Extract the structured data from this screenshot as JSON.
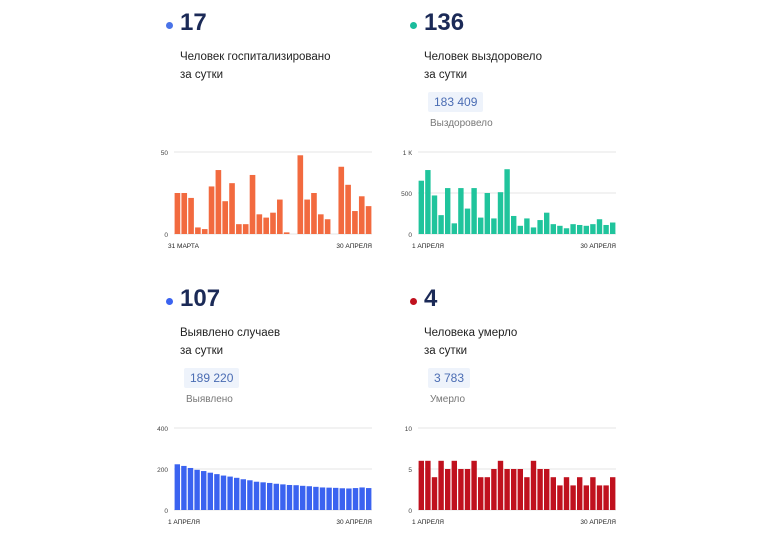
{
  "panels": [
    {
      "number": "17",
      "desc": "Человек госпитализировано\nза сутки",
      "total": null,
      "total_label": null,
      "dot_color": "#4a73e8"
    },
    {
      "number": "136",
      "desc": "Человек выздоровело\nза сутки",
      "total": "183 409",
      "total_label": "Выздоровело",
      "dot_color": "#1abc9c"
    },
    {
      "number": "107",
      "desc": "Выявлено случаев\nза сутки",
      "total": "189 220",
      "total_label": "Выявлено",
      "dot_color": "#3b63f0"
    },
    {
      "number": "4",
      "desc": "Человека умерло\nза сутки",
      "total": "3 783",
      "total_label": "Умерло",
      "dot_color": "#c0111e"
    }
  ],
  "chart_data": [
    {
      "type": "bar",
      "color": "#f26a3f",
      "ylim": [
        0,
        50
      ],
      "yticks": [
        "50",
        "0"
      ],
      "x_start_label": "31 МАРТА",
      "x_end_label": "30 АПРЕЛЯ",
      "values": [
        25,
        25,
        22,
        4,
        3,
        29,
        39,
        20,
        31,
        6,
        6,
        36,
        12,
        10,
        13,
        21,
        1,
        0,
        48,
        21,
        25,
        12,
        9,
        0,
        41,
        30,
        14,
        23,
        17
      ]
    },
    {
      "type": "bar",
      "color": "#20c49c",
      "ylim": [
        0,
        1000
      ],
      "yticks": [
        "1 К",
        "500",
        "0"
      ],
      "x_start_label": "1 АПРЕЛЯ",
      "x_end_label": "30 АПРЕЛЯ",
      "values": [
        650,
        780,
        470,
        230,
        560,
        130,
        560,
        310,
        560,
        200,
        500,
        190,
        510,
        790,
        220,
        100,
        190,
        80,
        170,
        260,
        120,
        100,
        70,
        120,
        110,
        100,
        120,
        180,
        110,
        140
      ]
    },
    {
      "type": "bar",
      "color": "#3b63f0",
      "ylim": [
        0,
        400
      ],
      "yticks": [
        "400",
        "200",
        "0"
      ],
      "x_start_label": "1 АПРЕЛЯ",
      "x_end_label": "30 АПРЕЛЯ",
      "values": [
        223,
        215,
        205,
        196,
        190,
        182,
        175,
        168,
        163,
        157,
        150,
        145,
        138,
        135,
        132,
        128,
        125,
        122,
        121,
        118,
        116,
        113,
        110,
        109,
        108,
        106,
        105,
        107,
        110,
        107
      ]
    },
    {
      "type": "bar",
      "color": "#c0111e",
      "ylim": [
        0,
        10
      ],
      "yticks": [
        "10",
        "5",
        "0"
      ],
      "x_start_label": "1 АПРЕЛЯ",
      "x_end_label": "30 АПРЕЛЯ",
      "values": [
        6,
        6,
        4,
        6,
        5,
        6,
        5,
        5,
        6,
        4,
        4,
        5,
        6,
        5,
        5,
        5,
        4,
        6,
        5,
        5,
        4,
        3,
        4,
        3,
        4,
        3,
        4,
        3,
        3,
        4
      ]
    }
  ]
}
